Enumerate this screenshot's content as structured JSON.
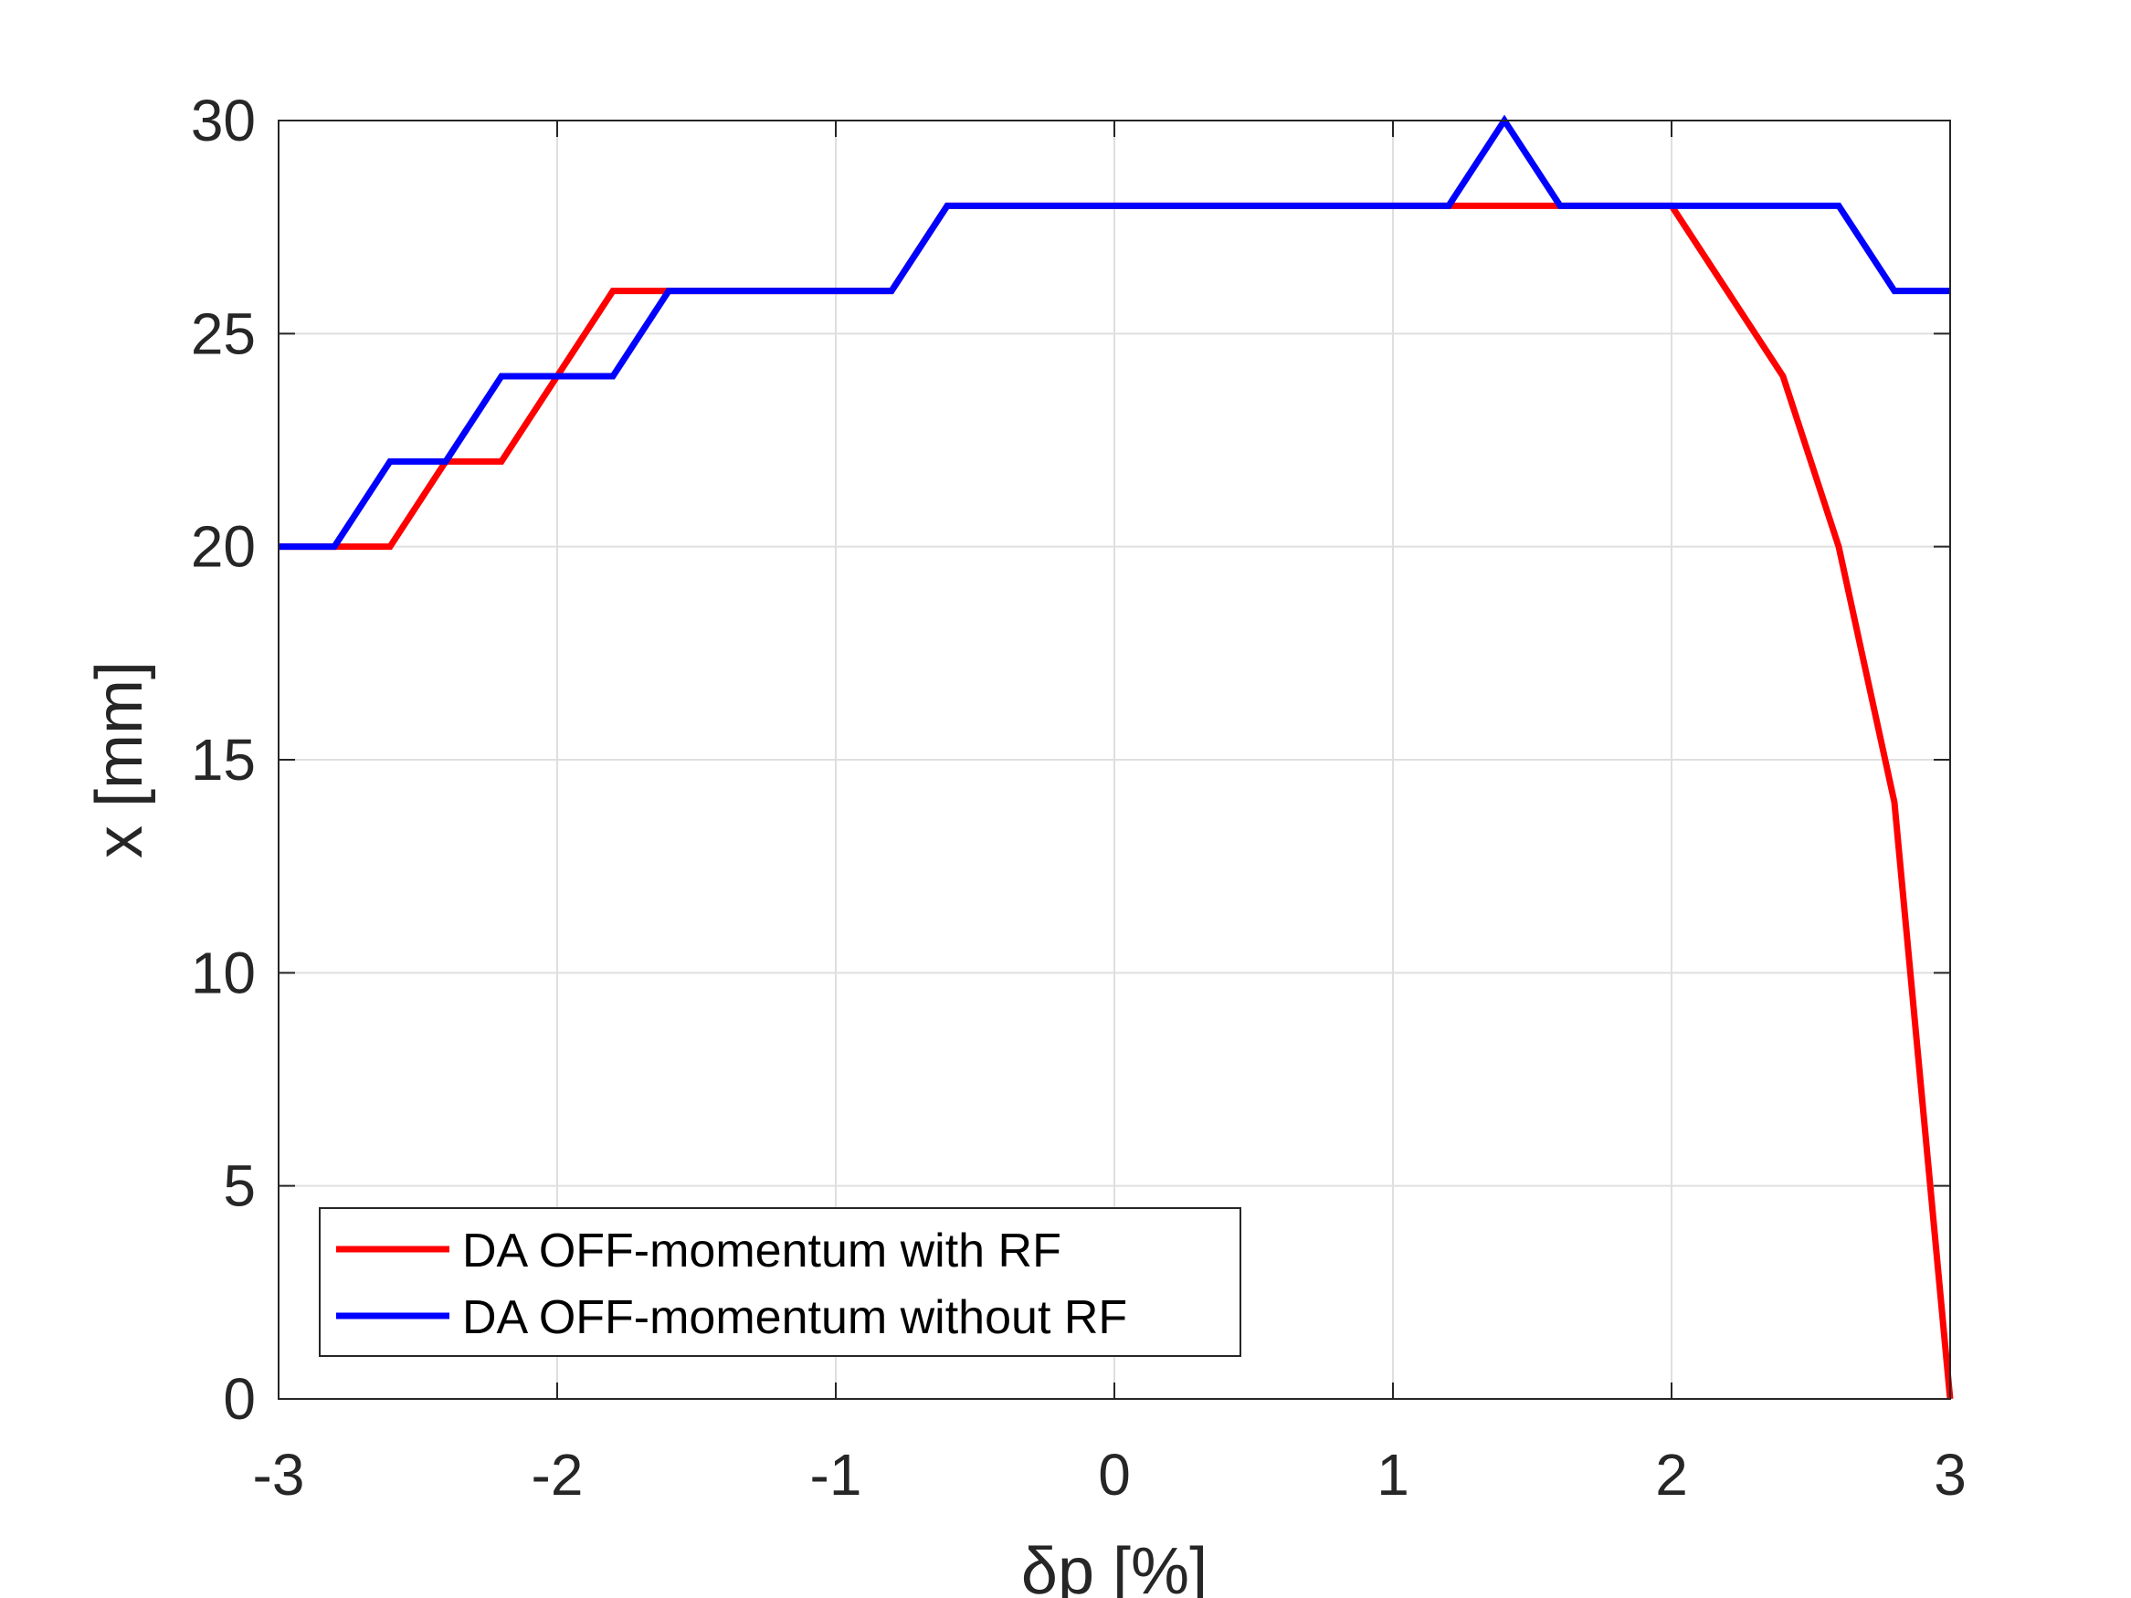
{
  "chart_data": {
    "type": "line",
    "title": "",
    "xlabel": "δp [%]",
    "ylabel": "x [mm]",
    "xlim": [
      -3,
      3
    ],
    "ylim": [
      0,
      30
    ],
    "xticks": [
      -3,
      -2,
      -1,
      0,
      1,
      2,
      3
    ],
    "yticks": [
      0,
      5,
      10,
      15,
      20,
      25,
      30
    ],
    "xtick_labels": [
      "-3",
      "-2",
      "-1",
      "0",
      "1",
      "2",
      "3"
    ],
    "ytick_labels": [
      "0",
      "5",
      "10",
      "15",
      "20",
      "25",
      "30"
    ],
    "grid": true,
    "legend_position": "bottom-left",
    "x": [
      -3.0,
      -2.8,
      -2.6,
      -2.4,
      -2.2,
      -2.0,
      -1.8,
      -1.6,
      -1.4,
      -1.2,
      -1.0,
      -0.8,
      -0.6,
      -0.4,
      -0.2,
      0.0,
      0.2,
      0.4,
      0.6,
      0.8,
      1.0,
      1.2,
      1.4,
      1.6,
      1.8,
      2.0,
      2.2,
      2.4,
      2.6,
      2.8,
      3.0
    ],
    "series": [
      {
        "name": "DA OFF-momentum with RF",
        "color": "#ff0000",
        "values": [
          20,
          20,
          20,
          22,
          22,
          24,
          26,
          26,
          26,
          26,
          26,
          26,
          28,
          28,
          28,
          28,
          28,
          28,
          28,
          28,
          28,
          28,
          28,
          28,
          28,
          28,
          26,
          24,
          20,
          14,
          0
        ]
      },
      {
        "name": "DA OFF-momentum without RF",
        "color": "#0000ff",
        "values": [
          20,
          20,
          22,
          22,
          24,
          24,
          24,
          26,
          26,
          26,
          26,
          26,
          28,
          28,
          28,
          28,
          28,
          28,
          28,
          28,
          28,
          28,
          30,
          28,
          28,
          28,
          28,
          28,
          28,
          26,
          26
        ]
      }
    ]
  }
}
